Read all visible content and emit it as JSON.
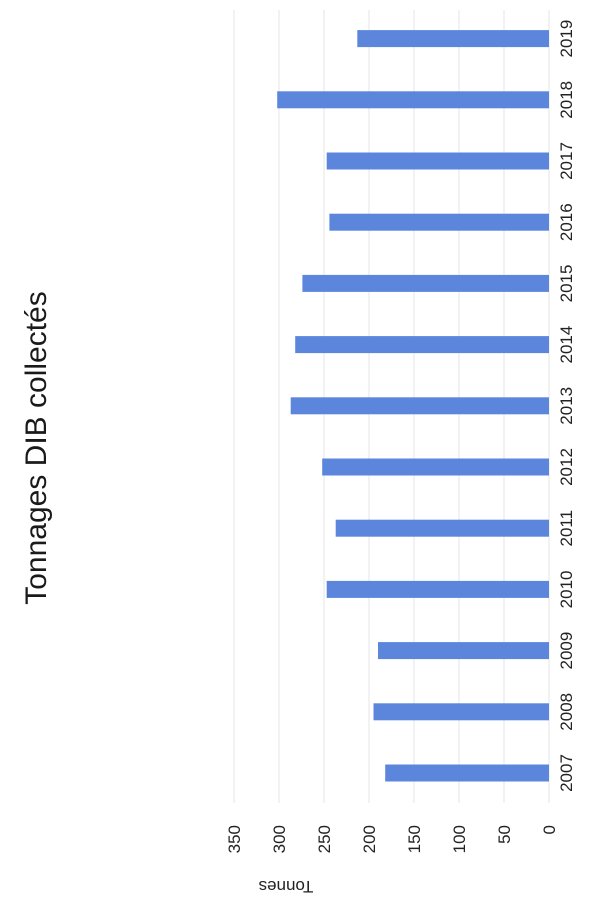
{
  "chart_data": {
    "type": "bar",
    "title": "Tonnages DIB collectés",
    "xlabel": "",
    "ylabel": "Tonnes",
    "categories": [
      "2007",
      "2008",
      "2009",
      "2010",
      "2011",
      "2012",
      "2013",
      "2014",
      "2015",
      "2016",
      "2017",
      "2018",
      "2019"
    ],
    "values": [
      182,
      195,
      190,
      247,
      237,
      252,
      287,
      282,
      274,
      244,
      247,
      302,
      213
    ],
    "ylim": [
      0,
      350
    ],
    "yticks": [
      "0",
      "50",
      "100",
      "150",
      "200",
      "250",
      "300",
      "350"
    ],
    "grid": true,
    "bar_color": "#5b86dc",
    "orientation": "rotated 90° clockwise in the scan"
  }
}
